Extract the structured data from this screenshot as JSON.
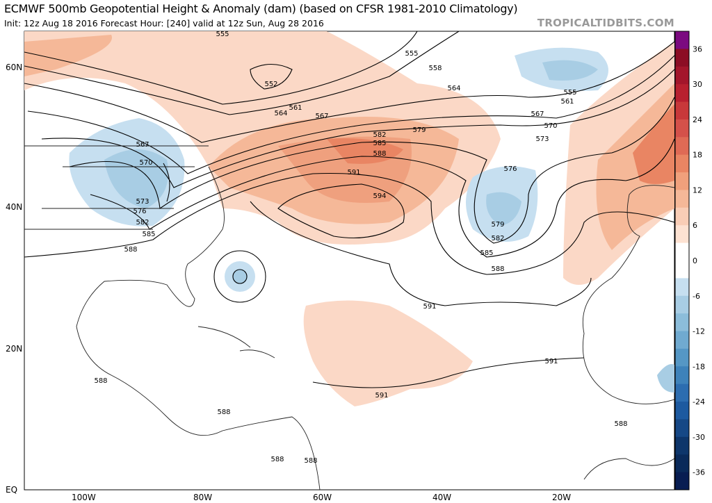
{
  "title": "ECMWF 500mb Geopotential Height & Anomaly (dam) (based on CFSR 1981-2010 Climatology)",
  "subtitle": "Init: 12z Aug 18 2016   Forecast Hour: [240]   valid at 12z Sun, Aug 28 2016",
  "brand": "TROPICALTIDBITS.COM",
  "lat_labels": [
    "60N",
    "40N",
    "20N",
    "EQ"
  ],
  "lon_labels": [
    "100W",
    "80W",
    "60W",
    "40W",
    "20W"
  ],
  "colorbar": {
    "ticks": [
      "36",
      "30",
      "24",
      "18",
      "12",
      "6",
      "0",
      "-6",
      "-12",
      "-18",
      "-24",
      "-30",
      "-36"
    ],
    "colors": [
      "#7b0a80",
      "#8c0d24",
      "#a3162b",
      "#b8202f",
      "#c8383a",
      "#d4514a",
      "#df6a55",
      "#e98563",
      "#f0a07c",
      "#f5b898",
      "#f9cdb6",
      "#fde2d2",
      "#ffffff",
      "#ffffff",
      "#c6dff0",
      "#a8cde4",
      "#8cbdda",
      "#70aad0",
      "#5597c5",
      "#3e82ba",
      "#2c6db0",
      "#1d5aa0",
      "#164886",
      "#0e366b",
      "#0a2a5a",
      "#081d52"
    ]
  },
  "contour_labels": [
    "555",
    "552",
    "561",
    "564",
    "567",
    "555",
    "558",
    "564",
    "579",
    "582",
    "585",
    "588",
    "591",
    "594",
    "567",
    "561",
    "555",
    "570",
    "573",
    "576",
    "579",
    "582",
    "585",
    "588",
    "591",
    "591",
    "591",
    "567",
    "570",
    "573",
    "576",
    "582",
    "585",
    "588",
    "588",
    "588",
    "588",
    "588",
    "588"
  ]
}
